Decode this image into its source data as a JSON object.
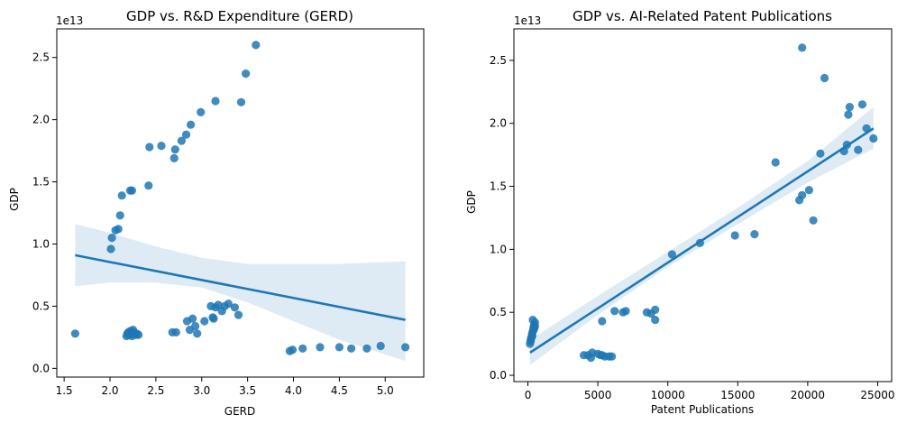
{
  "chart_data": [
    {
      "type": "scatter",
      "title": "GDP vs. R&D Expenditure (GERD)",
      "xlabel": "GERD",
      "ylabel": "GDP",
      "y_offset_label": "1e13",
      "xlim": [
        1.42,
        5.42
      ],
      "ylim": [
        -0.07,
        2.73
      ],
      "x_ticks": [
        1.5,
        2.0,
        2.5,
        3.0,
        3.5,
        4.0,
        4.5,
        5.0
      ],
      "x_tick_labels": [
        "1.5",
        "2.0",
        "2.5",
        "3.0",
        "3.5",
        "4.0",
        "4.5",
        "5.0"
      ],
      "y_ticks": [
        0.0,
        0.5,
        1.0,
        1.5,
        2.0,
        2.5
      ],
      "y_tick_labels": [
        "0.0",
        "0.5",
        "1.0",
        "1.5",
        "2.0",
        "2.5"
      ],
      "grid": false,
      "color": "#1f77b4",
      "points": {
        "x": [
          1.62,
          2.01,
          2.02,
          2.06,
          2.09,
          2.11,
          2.13,
          2.22,
          2.24,
          2.42,
          2.43,
          2.56,
          2.7,
          2.71,
          2.78,
          2.83,
          2.88,
          2.99,
          3.15,
          3.43,
          3.48,
          3.59,
          2.18,
          2.19,
          2.2,
          2.21,
          2.22,
          2.23,
          2.24,
          2.25,
          2.26,
          2.28,
          2.29,
          2.31,
          2.68,
          2.72,
          2.84,
          2.87,
          2.9,
          2.93,
          2.95,
          3.03,
          3.1,
          3.12,
          3.13,
          3.15,
          3.18,
          3.22,
          3.25,
          3.29,
          3.36,
          3.4,
          3.96,
          3.99,
          4.1,
          4.29,
          4.5,
          4.63,
          4.8,
          4.95,
          5.22
        ],
        "y": [
          0.28,
          0.96,
          1.05,
          1.11,
          1.12,
          1.23,
          1.39,
          1.43,
          1.43,
          1.47,
          1.78,
          1.79,
          1.69,
          1.76,
          1.83,
          1.88,
          1.96,
          2.06,
          2.15,
          2.14,
          2.37,
          2.6,
          0.26,
          0.28,
          0.29,
          0.27,
          0.3,
          0.28,
          0.26,
          0.31,
          0.29,
          0.27,
          0.28,
          0.27,
          0.29,
          0.29,
          0.38,
          0.31,
          0.4,
          0.34,
          0.28,
          0.38,
          0.5,
          0.41,
          0.4,
          0.49,
          0.51,
          0.46,
          0.5,
          0.52,
          0.49,
          0.43,
          0.14,
          0.15,
          0.16,
          0.17,
          0.17,
          0.16,
          0.16,
          0.18,
          0.17
        ]
      },
      "regression": {
        "x": [
          1.62,
          5.22
        ],
        "y": [
          0.91,
          0.39
        ]
      },
      "confidence_band": {
        "x": [
          1.62,
          2.0,
          2.5,
          3.0,
          3.5,
          4.0,
          4.5,
          5.22
        ],
        "lower": [
          0.66,
          0.69,
          0.69,
          0.65,
          0.53,
          0.38,
          0.23,
          0.06
        ],
        "upper": [
          1.16,
          1.09,
          0.98,
          0.89,
          0.84,
          0.84,
          0.84,
          0.86
        ]
      }
    },
    {
      "type": "scatter",
      "title": "GDP vs. AI-Related Patent Publications",
      "xlabel": "Patent Publications",
      "ylabel": "GDP",
      "y_offset_label": "1e13",
      "xlim": [
        -1000,
        26000
      ],
      "ylim": [
        -0.05,
        2.75
      ],
      "x_ticks": [
        0,
        5000,
        10000,
        15000,
        20000,
        25000
      ],
      "x_tick_labels": [
        "0",
        "5000",
        "10000",
        "15000",
        "20000",
        "25000"
      ],
      "y_ticks": [
        0.0,
        0.5,
        1.0,
        1.5,
        2.0,
        2.5
      ],
      "y_tick_labels": [
        "0.0",
        "0.5",
        "1.0",
        "1.5",
        "2.0",
        "2.5"
      ],
      "grid": false,
      "color": "#1f77b4",
      "points": {
        "x": [
          150,
          200,
          250,
          300,
          350,
          400,
          450,
          500,
          200,
          300,
          400,
          500,
          350,
          250,
          450,
          300,
          4000,
          4300,
          4600,
          5000,
          5200,
          5500,
          5800,
          6000,
          4500,
          5300,
          5300,
          6200,
          6800,
          7000,
          8500,
          8800,
          9100,
          9100,
          10300,
          12300,
          14800,
          16200,
          17700,
          19400,
          19600,
          19600,
          20100,
          20400,
          20900,
          21200,
          22600,
          22800,
          22900,
          23000,
          23600,
          23900,
          24200,
          24700
        ],
        "y": [
          0.25,
          0.28,
          0.3,
          0.32,
          0.35,
          0.38,
          0.4,
          0.42,
          0.27,
          0.31,
          0.36,
          0.39,
          0.44,
          0.3,
          0.37,
          0.33,
          0.16,
          0.16,
          0.18,
          0.17,
          0.16,
          0.15,
          0.15,
          0.15,
          0.14,
          0.43,
          0.16,
          0.51,
          0.5,
          0.51,
          0.5,
          0.49,
          0.52,
          0.44,
          0.96,
          1.05,
          1.11,
          1.12,
          1.69,
          1.39,
          1.43,
          2.6,
          1.47,
          1.23,
          1.76,
          2.36,
          1.78,
          1.83,
          2.07,
          2.13,
          1.79,
          2.15,
          1.96,
          1.88
        ]
      },
      "regression": {
        "x": [
          150,
          24700
        ],
        "y": [
          0.18,
          1.96
        ]
      },
      "confidence_band": {
        "x": [
          150,
          5000,
          10000,
          15000,
          20000,
          24700
        ],
        "lower": [
          0.08,
          0.48,
          0.86,
          1.2,
          1.53,
          1.8
        ],
        "upper": [
          0.28,
          0.63,
          0.98,
          1.33,
          1.7,
          2.13
        ]
      }
    }
  ]
}
